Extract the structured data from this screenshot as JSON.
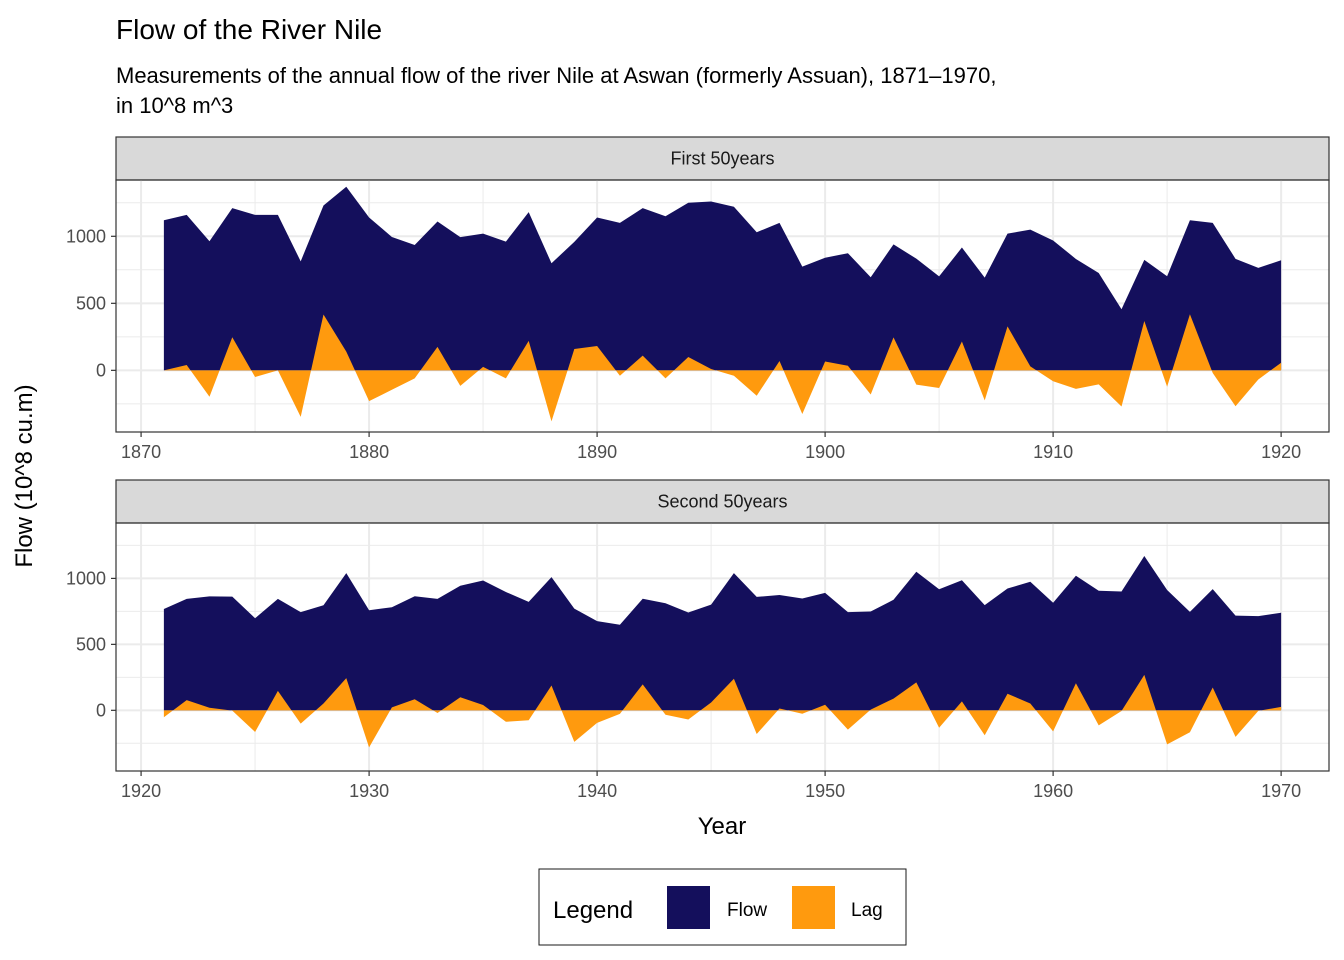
{
  "title": "Flow of the River Nile",
  "subtitle": [
    "Measurements of the annual flow of the river Nile at Aswan (formerly Assuan), 1871–1970,",
    "in 10^8 m^3"
  ],
  "ylabel": "Flow (10^8 cu.m)",
  "xlabel": "Year",
  "legend": {
    "title": "Legend",
    "items": [
      {
        "label": "Flow",
        "color": "#140f5c"
      },
      {
        "label": "Lag",
        "color": "#ff9a0e"
      }
    ]
  },
  "colors": {
    "flow": "#140f5c",
    "lag": "#ff9a0e"
  },
  "chart_data": {
    "type": "area",
    "y_ticks": [
      0,
      500,
      1000
    ],
    "ylim": [
      -460,
      1420
    ],
    "facets": [
      {
        "strip": "First 50years",
        "xlim": [
          1868.9,
          1922.1
        ],
        "x_ticks": [
          1870,
          1880,
          1890,
          1900,
          1910,
          1920
        ],
        "series": [
          {
            "name": "Flow",
            "x_start": 1871,
            "values": [
              1120,
              1160,
              963,
              1210,
              1160,
              1160,
              813,
              1230,
              1370,
              1140,
              995,
              935,
              1110,
              994,
              1020,
              960,
              1180,
              799,
              958,
              1140,
              1100,
              1210,
              1150,
              1250,
              1260,
              1220,
              1030,
              1100,
              774,
              840,
              874,
              694,
              940,
              833,
              701,
              916,
              692,
              1020,
              1050,
              969,
              831,
              726,
              456,
              824,
              702,
              1120,
              1100,
              832,
              764,
              821
            ]
          },
          {
            "name": "Lag",
            "x_start": 1871,
            "values": [
              0,
              40,
              -197,
              247,
              -50,
              0,
              -347,
              417,
              140,
              -230,
              -145,
              -60,
              175,
              -116,
              26,
              -60,
              220,
              -381,
              159,
              182,
              -40,
              110,
              -60,
              100,
              10,
              -40,
              -190,
              70,
              -326,
              66,
              34,
              -180,
              246,
              -107,
              -132,
              215,
              -224,
              328,
              30,
              -81,
              -138,
              -105,
              -270,
              368,
              -122,
              418,
              -20,
              -268,
              -68,
              57
            ]
          }
        ]
      },
      {
        "strip": "Second 50years",
        "xlim": [
          1918.9,
          1972.1
        ],
        "x_ticks": [
          1920,
          1930,
          1940,
          1950,
          1960,
          1970
        ],
        "series": [
          {
            "name": "Flow",
            "x_start": 1921,
            "values": [
              768,
              845,
              864,
              862,
              698,
              845,
              744,
              796,
              1040,
              759,
              781,
              865,
              845,
              944,
              984,
              897,
              822,
              1010,
              771,
              676,
              649,
              846,
              812,
              742,
              801,
              1040,
              860,
              874,
              848,
              890,
              744,
              749,
              838,
              1050,
              918,
              986,
              797,
              923,
              975,
              815,
              1020,
              906,
              901,
              1170,
              912,
              746,
              919,
              718,
              714,
              740
            ]
          },
          {
            "name": "Lag",
            "x_start": 1921,
            "values": [
              -53,
              77,
              19,
              -2,
              -164,
              147,
              -101,
              52,
              244,
              -281,
              22,
              84,
              -20,
              99,
              40,
              -87,
              -75,
              188,
              -239,
              -95,
              -27,
              197,
              -34,
              -70,
              59,
              239,
              -180,
              14,
              -26,
              42,
              -146,
              5,
              89,
              212,
              -132,
              68,
              -189,
              126,
              52,
              -160,
              205,
              -114,
              -5,
              269,
              -258,
              -166,
              173,
              -201,
              -4,
              26
            ]
          }
        ]
      }
    ]
  }
}
